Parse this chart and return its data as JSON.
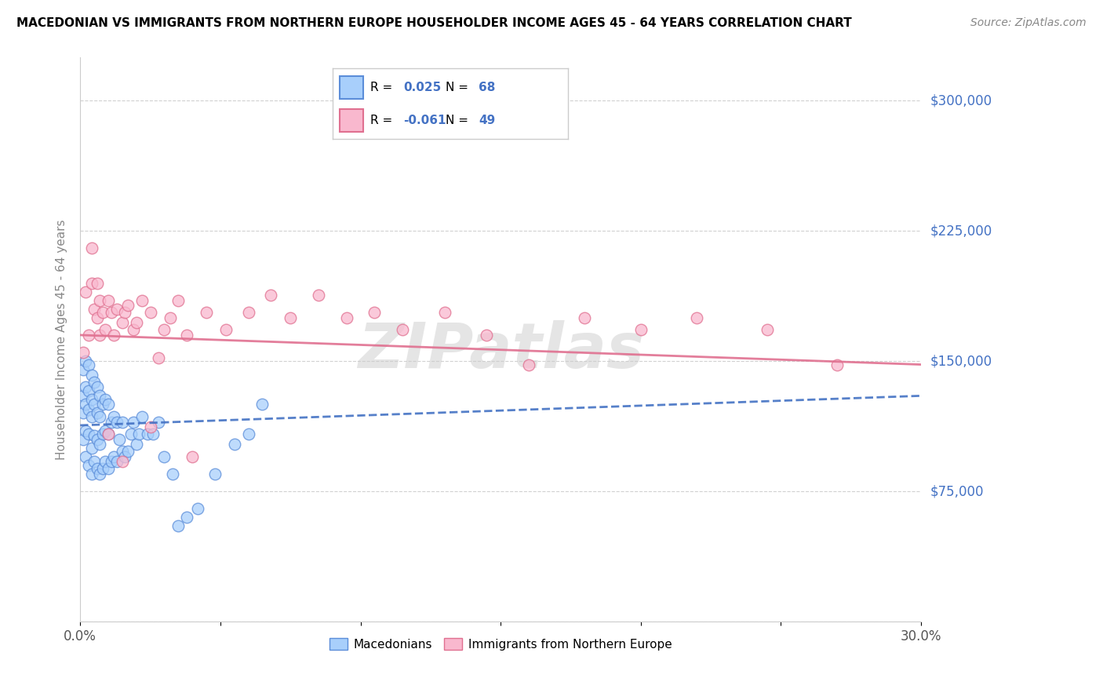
{
  "title": "MACEDONIAN VS IMMIGRANTS FROM NORTHERN EUROPE HOUSEHOLDER INCOME AGES 45 - 64 YEARS CORRELATION CHART",
  "source": "Source: ZipAtlas.com",
  "ylabel": "Householder Income Ages 45 - 64 years",
  "xlim": [
    0.0,
    0.3
  ],
  "ylim": [
    0,
    325000
  ],
  "yticks": [
    0,
    75000,
    150000,
    225000,
    300000
  ],
  "ytick_labels": [
    "",
    "$75,000",
    "$150,000",
    "$225,000",
    "$300,000"
  ],
  "xticks": [
    0.0,
    0.05,
    0.1,
    0.15,
    0.2,
    0.25,
    0.3
  ],
  "blue_R": 0.025,
  "blue_N": 68,
  "pink_R": -0.061,
  "pink_N": 49,
  "blue_color": "#A8CFFB",
  "pink_color": "#F9B8CE",
  "blue_edge_color": "#5B8DD9",
  "pink_edge_color": "#E07090",
  "blue_line_color": "#4472C4",
  "pink_line_color": "#E07090",
  "watermark": "ZIPatlas",
  "blue_scatter_x": [
    0.001,
    0.001,
    0.001,
    0.001,
    0.002,
    0.002,
    0.002,
    0.002,
    0.002,
    0.003,
    0.003,
    0.003,
    0.003,
    0.003,
    0.004,
    0.004,
    0.004,
    0.004,
    0.004,
    0.005,
    0.005,
    0.005,
    0.005,
    0.006,
    0.006,
    0.006,
    0.006,
    0.007,
    0.007,
    0.007,
    0.007,
    0.008,
    0.008,
    0.008,
    0.009,
    0.009,
    0.009,
    0.01,
    0.01,
    0.01,
    0.011,
    0.011,
    0.012,
    0.012,
    0.013,
    0.013,
    0.014,
    0.015,
    0.015,
    0.016,
    0.017,
    0.018,
    0.019,
    0.02,
    0.021,
    0.022,
    0.024,
    0.026,
    0.028,
    0.03,
    0.033,
    0.035,
    0.038,
    0.042,
    0.048,
    0.055,
    0.06,
    0.065
  ],
  "blue_scatter_y": [
    105000,
    120000,
    130000,
    145000,
    95000,
    110000,
    125000,
    135000,
    150000,
    90000,
    108000,
    122000,
    133000,
    148000,
    85000,
    100000,
    118000,
    128000,
    142000,
    92000,
    107000,
    125000,
    138000,
    88000,
    105000,
    120000,
    135000,
    85000,
    102000,
    118000,
    130000,
    88000,
    108000,
    125000,
    92000,
    110000,
    128000,
    88000,
    108000,
    125000,
    92000,
    115000,
    95000,
    118000,
    92000,
    115000,
    105000,
    98000,
    115000,
    95000,
    98000,
    108000,
    115000,
    102000,
    108000,
    118000,
    108000,
    108000,
    115000,
    95000,
    85000,
    55000,
    60000,
    65000,
    85000,
    102000,
    108000,
    125000
  ],
  "pink_scatter_x": [
    0.001,
    0.002,
    0.003,
    0.004,
    0.004,
    0.005,
    0.006,
    0.006,
    0.007,
    0.007,
    0.008,
    0.009,
    0.01,
    0.011,
    0.012,
    0.013,
    0.015,
    0.016,
    0.017,
    0.019,
    0.02,
    0.022,
    0.025,
    0.028,
    0.03,
    0.032,
    0.035,
    0.038,
    0.045,
    0.052,
    0.06,
    0.068,
    0.075,
    0.085,
    0.095,
    0.105,
    0.115,
    0.13,
    0.145,
    0.16,
    0.18,
    0.2,
    0.22,
    0.245,
    0.27,
    0.01,
    0.015,
    0.025,
    0.04
  ],
  "pink_scatter_y": [
    155000,
    190000,
    165000,
    215000,
    195000,
    180000,
    175000,
    195000,
    185000,
    165000,
    178000,
    168000,
    185000,
    178000,
    165000,
    180000,
    172000,
    178000,
    182000,
    168000,
    172000,
    185000,
    178000,
    152000,
    168000,
    175000,
    185000,
    165000,
    178000,
    168000,
    178000,
    188000,
    175000,
    188000,
    175000,
    178000,
    168000,
    178000,
    165000,
    148000,
    175000,
    168000,
    175000,
    168000,
    148000,
    108000,
    92000,
    112000,
    95000
  ]
}
